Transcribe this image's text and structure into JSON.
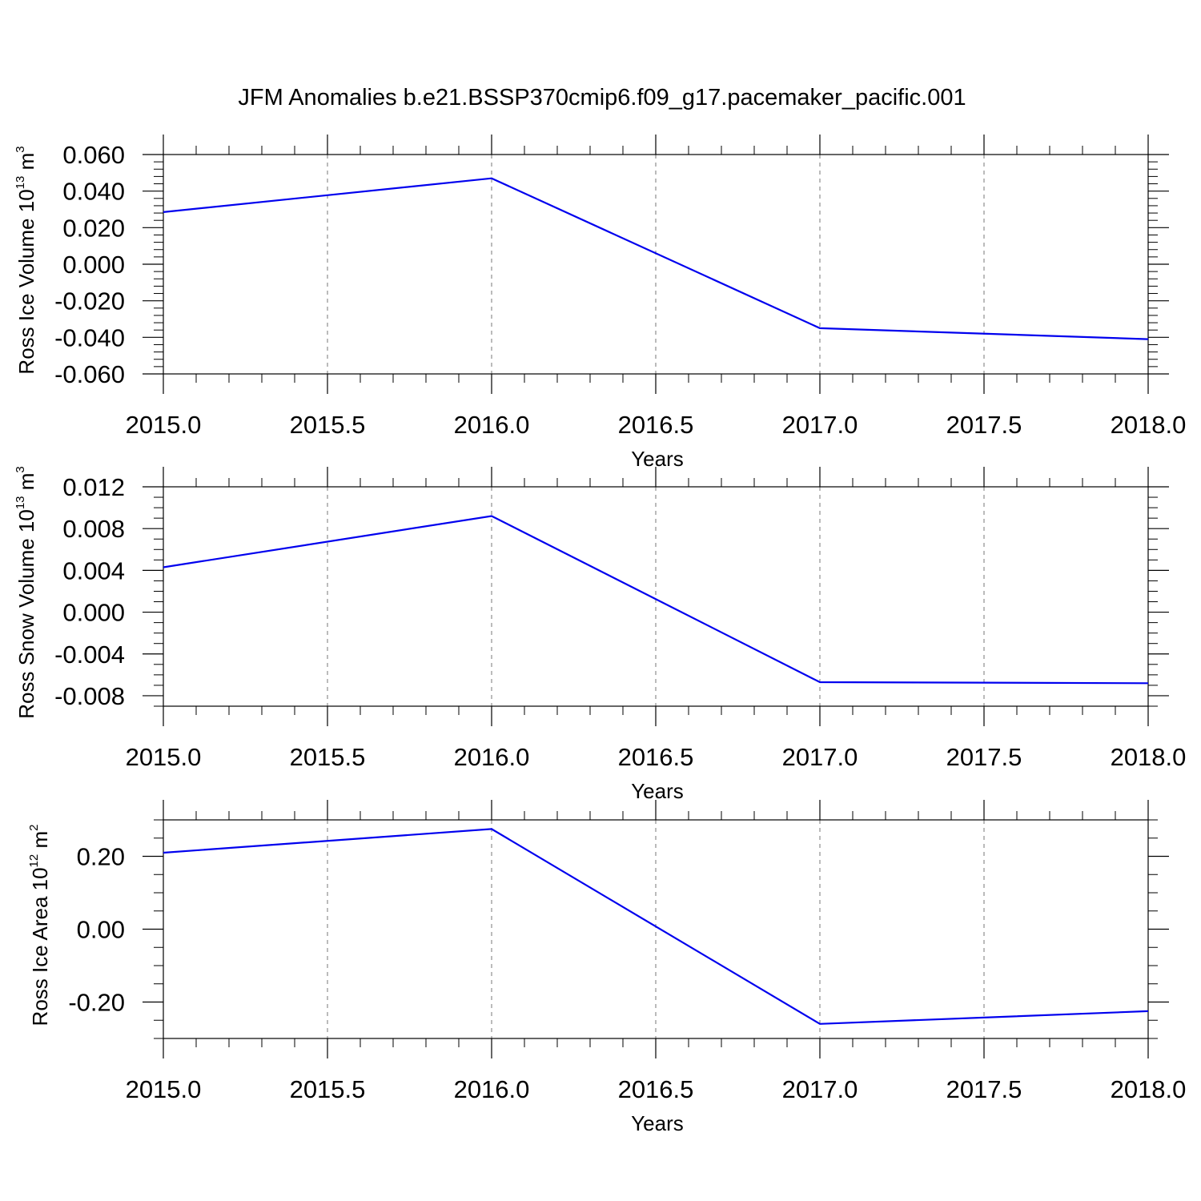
{
  "figure": {
    "title": "JFM Anomalies b.e21.BSSP370cmip6.f09_g17.pacemaker_pacific.001"
  },
  "chart_data": [
    {
      "type": "line",
      "xlabel": "Years",
      "ylabel": {
        "text": "Ross Ice Volume 10",
        "exp": "13",
        "unit": " m",
        "unit_exp": "3"
      },
      "x": [
        2015.0,
        2016.0,
        2017.0,
        2018.0
      ],
      "series": [
        {
          "values": [
            0.0285,
            0.047,
            -0.035,
            -0.041
          ]
        }
      ],
      "xlim": [
        2015.0,
        2018.0
      ],
      "ylim": [
        -0.06,
        0.06
      ],
      "xticks": [
        {
          "value": 2015.0,
          "label": "2015.0"
        },
        {
          "value": 2015.5,
          "label": "2015.5"
        },
        {
          "value": 2016.0,
          "label": "2016.0"
        },
        {
          "value": 2016.5,
          "label": "2016.5"
        },
        {
          "value": 2017.0,
          "label": "2017.0"
        },
        {
          "value": 2017.5,
          "label": "2017.5"
        },
        {
          "value": 2018.0,
          "label": "2018.0"
        }
      ],
      "yticks": [
        {
          "value": 0.06,
          "label": "0.060"
        },
        {
          "value": 0.04,
          "label": "0.040"
        },
        {
          "value": 0.02,
          "label": "0.020"
        },
        {
          "value": 0.0,
          "label": "0.000"
        },
        {
          "value": -0.02,
          "label": "-0.020"
        },
        {
          "value": -0.04,
          "label": "-0.040"
        },
        {
          "value": -0.06,
          "label": "-0.060"
        }
      ],
      "y_minor_step": 0.004,
      "grid": "x dashed",
      "line_color": "#0000ee"
    },
    {
      "type": "line",
      "xlabel": "Years",
      "ylabel": {
        "text": "Ross Snow Volume 10",
        "exp": "13",
        "unit": " m",
        "unit_exp": "3"
      },
      "x": [
        2015.0,
        2016.0,
        2017.0,
        2018.0
      ],
      "series": [
        {
          "values": [
            0.0043,
            0.0092,
            -0.0067,
            -0.0068
          ]
        }
      ],
      "xlim": [
        2015.0,
        2018.0
      ],
      "ylim": [
        -0.009,
        0.012
      ],
      "xticks": [
        {
          "value": 2015.0,
          "label": "2015.0"
        },
        {
          "value": 2015.5,
          "label": "2015.5"
        },
        {
          "value": 2016.0,
          "label": "2016.0"
        },
        {
          "value": 2016.5,
          "label": "2016.5"
        },
        {
          "value": 2017.0,
          "label": "2017.0"
        },
        {
          "value": 2017.5,
          "label": "2017.5"
        },
        {
          "value": 2018.0,
          "label": "2018.0"
        }
      ],
      "yticks": [
        {
          "value": 0.012,
          "label": "0.012"
        },
        {
          "value": 0.008,
          "label": "0.008"
        },
        {
          "value": 0.004,
          "label": "0.004"
        },
        {
          "value": 0.0,
          "label": "0.000"
        },
        {
          "value": -0.004,
          "label": "-0.004"
        },
        {
          "value": -0.008,
          "label": "-0.008"
        }
      ],
      "y_minor_step": 0.001,
      "grid": "x dashed",
      "line_color": "#0000ee"
    },
    {
      "type": "line",
      "xlabel": "Years",
      "ylabel": {
        "text": "Ross Ice Area 10",
        "exp": "12",
        "unit": " m",
        "unit_exp": "2"
      },
      "x": [
        2015.0,
        2016.0,
        2017.0,
        2018.0
      ],
      "series": [
        {
          "values": [
            0.21,
            0.275,
            -0.26,
            -0.225
          ]
        }
      ],
      "xlim": [
        2015.0,
        2018.0
      ],
      "ylim": [
        -0.3,
        0.3
      ],
      "xticks": [
        {
          "value": 2015.0,
          "label": "2015.0"
        },
        {
          "value": 2015.5,
          "label": "2015.5"
        },
        {
          "value": 2016.0,
          "label": "2016.0"
        },
        {
          "value": 2016.5,
          "label": "2016.5"
        },
        {
          "value": 2017.0,
          "label": "2017.0"
        },
        {
          "value": 2017.5,
          "label": "2017.5"
        },
        {
          "value": 2018.0,
          "label": "2018.0"
        }
      ],
      "yticks": [
        {
          "value": 0.2,
          "label": "0.20"
        },
        {
          "value": 0.0,
          "label": "0.00"
        },
        {
          "value": -0.2,
          "label": "-0.20"
        }
      ],
      "y_minor_step": 0.05,
      "grid": "x dashed",
      "line_color": "#0000ee"
    }
  ]
}
